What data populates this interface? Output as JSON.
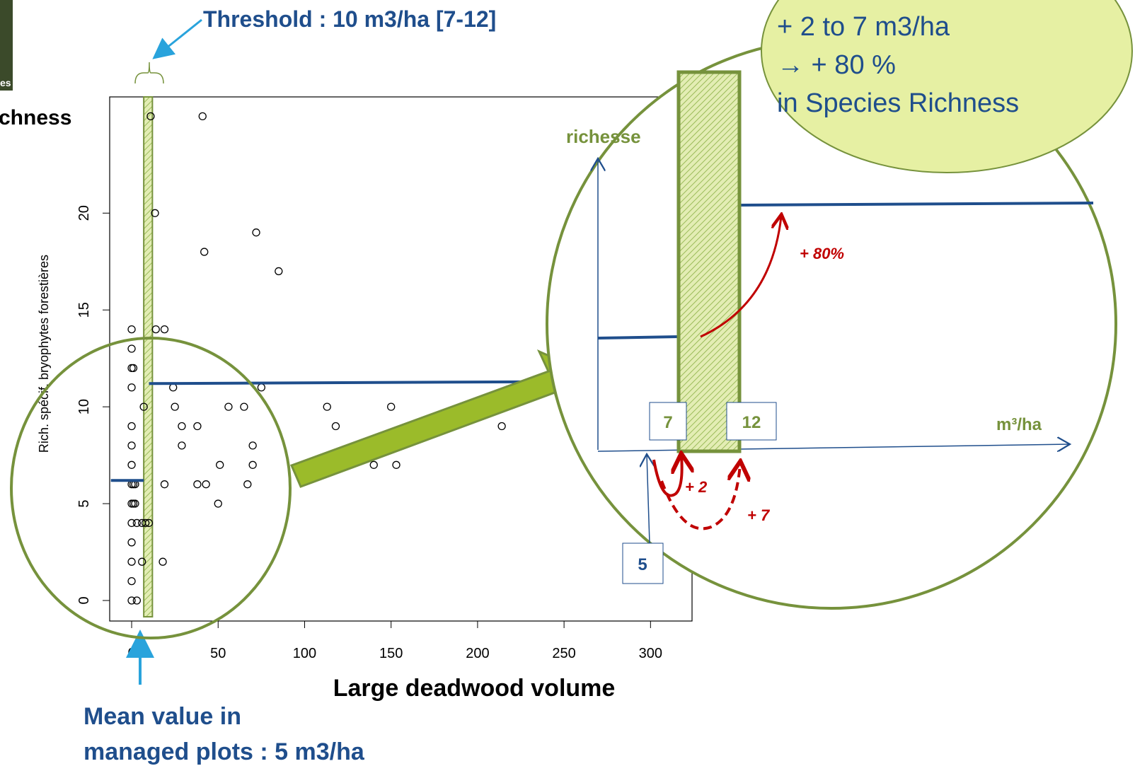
{
  "chart_data": {
    "type": "scatter",
    "x_title": "Large deadwood volume",
    "y_title": "Rich. spécif. bryophytes forestières",
    "x": [
      11,
      41,
      13.5,
      72,
      42,
      85,
      0,
      14,
      19,
      0,
      0,
      1,
      0,
      24,
      75,
      7,
      25,
      56,
      65,
      113,
      150,
      0,
      29,
      38,
      118,
      214,
      0,
      29,
      70,
      0,
      51,
      70,
      140,
      153,
      0,
      1,
      2,
      19,
      38,
      43,
      67,
      0,
      1,
      2,
      50,
      0,
      3,
      6,
      8,
      10,
      0,
      0,
      6,
      18,
      0,
      0,
      3
    ],
    "values": [
      25,
      25,
      20,
      19,
      18,
      17,
      14,
      14,
      14,
      13,
      12,
      12,
      11,
      11,
      11,
      10,
      10,
      10,
      10,
      10,
      10,
      9,
      9,
      9,
      9,
      9,
      8,
      8,
      8,
      7,
      7,
      7,
      7,
      7,
      6,
      6,
      6,
      6,
      6,
      6,
      6,
      5,
      5,
      5,
      5,
      4,
      4,
      4,
      4,
      4,
      3,
      2,
      2,
      2,
      1,
      0,
      0
    ],
    "point_color": "#000000",
    "xlim": [
      -12.7,
      324
    ],
    "ylim": [
      -1.06,
      26
    ],
    "xticks": [
      0,
      50,
      100,
      150,
      200,
      250,
      300
    ],
    "yticks": [
      0,
      5,
      10,
      15,
      20
    ],
    "threshold_band": [
      7,
      12
    ],
    "fit": [
      {
        "x": [
          -12,
          7
        ],
        "values": [
          6.2,
          6.2
        ]
      },
      {
        "x": [
          10,
          251
        ],
        "values": [
          11.2,
          11.3
        ]
      }
    ]
  },
  "annotations": {
    "threshold": "Threshold : 10 m3/ha [7-12]",
    "mean_value": [
      "Mean value in",
      "managed plots : 5 m3/ha"
    ],
    "richness_fragment": "chness",
    "photo_fragment": "es"
  },
  "inset": {
    "y_label": "richesse",
    "x_label": "m³/ha",
    "low": "7",
    "high": "12",
    "mean": "5",
    "gain_low": "+ 2",
    "gain_high": "+ 7",
    "gain_richness": "+ 80%"
  },
  "callout": [
    "+ 2 to 7 m3/ha",
    "→ + 80 %",
    "in Species Richness"
  ]
}
